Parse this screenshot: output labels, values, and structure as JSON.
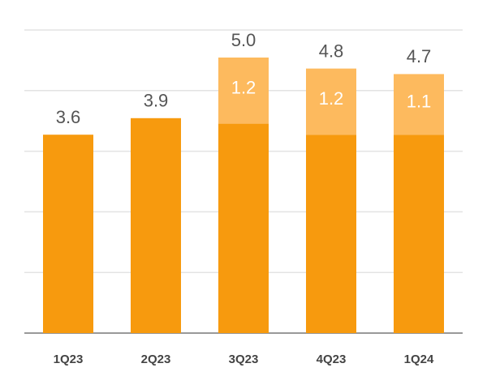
{
  "chart_data": {
    "type": "stacked_bar",
    "categories": [
      "1Q23",
      "2Q23",
      "3Q23",
      "4Q23",
      "1Q24"
    ],
    "series": [
      {
        "color": "#f79a0e",
        "values": [
          3.6,
          3.9,
          3.8,
          3.6,
          3.6
        ]
      },
      {
        "color": "#fdba5e",
        "values": [
          null,
          null,
          1.2,
          1.2,
          1.1
        ]
      }
    ],
    "totals": {
      "values": [
        3.6,
        3.9,
        5.0,
        4.8,
        4.7
      ],
      "value_labels": [
        "3.6",
        "3.9",
        "5.0",
        "4.8",
        "4.7"
      ]
    },
    "ylim": [
      0,
      5.5
    ],
    "yticks": [
      0,
      1.1,
      2.2,
      3.3,
      4.4,
      5.5
    ],
    "grid": true
  }
}
